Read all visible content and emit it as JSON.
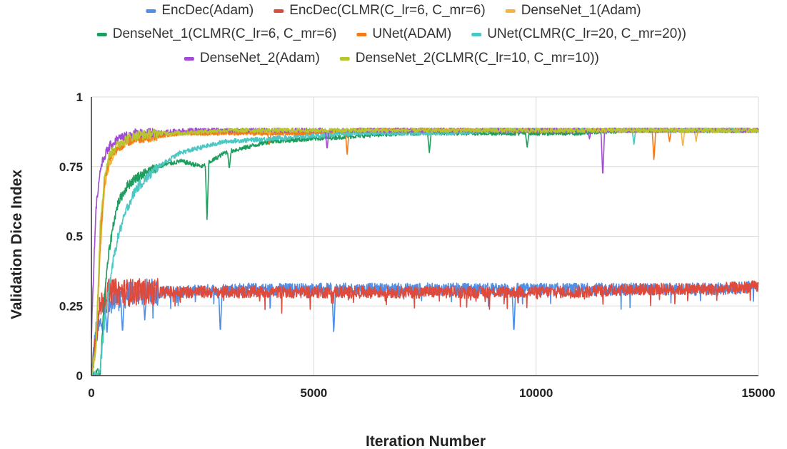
{
  "chart_data": {
    "type": "line",
    "title": "",
    "xlabel": "Iteration Number",
    "ylabel": "Validation Dice Index",
    "xlim": [
      0,
      15000
    ],
    "ylim": [
      0,
      1
    ],
    "xticks": [
      0,
      5000,
      10000,
      15000
    ],
    "yticks": [
      0,
      0.25,
      0.5,
      0.75,
      1
    ],
    "xtick_labels": [
      "0",
      "5000",
      "10000",
      "15000"
    ],
    "ytick_labels": [
      "0",
      "0.25",
      "0.5",
      "0.75",
      "1"
    ],
    "grid": true,
    "legend_position": "top",
    "series": [
      {
        "name": "EncDec(Adam)",
        "color": "#4f8fe8",
        "x": [
          0,
          100,
          200,
          300,
          400,
          600,
          800,
          1000,
          1500,
          2000,
          3000,
          4000,
          5000,
          6000,
          7000,
          8000,
          9000,
          10000,
          11000,
          12000,
          13000,
          14000,
          15000
        ],
        "y": [
          0.0,
          0.15,
          0.18,
          0.24,
          0.27,
          0.28,
          0.29,
          0.3,
          0.3,
          0.3,
          0.31,
          0.31,
          0.31,
          0.31,
          0.31,
          0.31,
          0.31,
          0.31,
          0.31,
          0.31,
          0.31,
          0.31,
          0.32
        ],
        "dips": [
          [
            350,
            0.15
          ],
          [
            700,
            0.15
          ],
          [
            1200,
            0.2
          ],
          [
            2900,
            0.15
          ],
          [
            5450,
            0.15
          ],
          [
            9500,
            0.15
          ]
        ]
      },
      {
        "name": "EncDec(CLMR(C_lr=6, C_mr=6)",
        "color": "#de4a3c",
        "x": [
          0,
          100,
          200,
          300,
          400,
          600,
          800,
          1000,
          1500,
          2000,
          3000,
          4000,
          5000,
          6000,
          7000,
          8000,
          9000,
          10000,
          11000,
          12000,
          13000,
          14000,
          15000
        ],
        "y": [
          0.0,
          0.15,
          0.25,
          0.28,
          0.3,
          0.3,
          0.3,
          0.3,
          0.3,
          0.3,
          0.3,
          0.3,
          0.3,
          0.3,
          0.3,
          0.3,
          0.3,
          0.3,
          0.3,
          0.31,
          0.31,
          0.31,
          0.32
        ],
        "dips": []
      },
      {
        "name": "DenseNet_1(Adam)",
        "color": "#f5b43c",
        "x": [
          0,
          100,
          200,
          300,
          400,
          600,
          800,
          1000,
          1500,
          2000,
          3000,
          4000,
          5000,
          6000,
          7000,
          8000,
          9000,
          10000,
          11000,
          12000,
          13000,
          14000,
          15000
        ],
        "y": [
          0.0,
          0.1,
          0.45,
          0.68,
          0.76,
          0.82,
          0.84,
          0.85,
          0.86,
          0.87,
          0.87,
          0.87,
          0.87,
          0.88,
          0.88,
          0.88,
          0.88,
          0.88,
          0.88,
          0.88,
          0.88,
          0.88,
          0.88
        ],
        "dips": [
          [
            13300,
            0.82
          ],
          [
            13600,
            0.84
          ]
        ]
      },
      {
        "name": "DenseNet_1(CLMR(C_lr=6, C_mr=6)",
        "color": "#1e9e5e",
        "x": [
          0,
          100,
          200,
          300,
          400,
          500,
          600,
          800,
          1000,
          1500,
          2000,
          2500,
          3000,
          3500,
          4000,
          5000,
          6000,
          7000,
          8000,
          9000,
          10000,
          11000,
          12000,
          13000,
          14000,
          15000
        ],
        "y": [
          0.0,
          0.0,
          0.02,
          0.3,
          0.45,
          0.55,
          0.62,
          0.68,
          0.71,
          0.75,
          0.77,
          0.75,
          0.8,
          0.82,
          0.84,
          0.85,
          0.86,
          0.87,
          0.87,
          0.87,
          0.87,
          0.87,
          0.88,
          0.88,
          0.88,
          0.88
        ],
        "dips": [
          [
            2600,
            0.56
          ],
          [
            3100,
            0.74
          ],
          [
            7600,
            0.8
          ],
          [
            9800,
            0.82
          ]
        ]
      },
      {
        "name": "UNet(ADAM)",
        "color": "#f27a1a",
        "x": [
          0,
          100,
          200,
          300,
          400,
          600,
          800,
          1000,
          1500,
          2000,
          3000,
          4000,
          5000,
          6000,
          7000,
          8000,
          9000,
          10000,
          11000,
          12000,
          13000,
          14000,
          15000
        ],
        "y": [
          0.0,
          0.1,
          0.5,
          0.7,
          0.78,
          0.82,
          0.84,
          0.85,
          0.86,
          0.87,
          0.87,
          0.87,
          0.87,
          0.88,
          0.88,
          0.88,
          0.88,
          0.88,
          0.88,
          0.88,
          0.88,
          0.88,
          0.88
        ],
        "dips": [
          [
            4000,
            0.83
          ],
          [
            5750,
            0.79
          ],
          [
            12650,
            0.77
          ],
          [
            13000,
            0.84
          ]
        ]
      },
      {
        "name": "UNet(CLMR(C_lr=20,  C_mr=20))",
        "color": "#4cc7c4",
        "x": [
          0,
          100,
          200,
          300,
          400,
          500,
          600,
          800,
          1000,
          1500,
          2000,
          2500,
          3000,
          4000,
          5000,
          6000,
          7000,
          8000,
          9000,
          10000,
          11000,
          12000,
          13000,
          14000,
          15000
        ],
        "y": [
          0.0,
          0.0,
          0.02,
          0.2,
          0.32,
          0.42,
          0.5,
          0.6,
          0.67,
          0.75,
          0.8,
          0.82,
          0.84,
          0.85,
          0.86,
          0.87,
          0.87,
          0.87,
          0.88,
          0.88,
          0.88,
          0.88,
          0.88,
          0.88,
          0.88
        ],
        "dips": [
          [
            12200,
            0.83
          ]
        ]
      },
      {
        "name": "DenseNet_2(Adam)",
        "color": "#a24bd6",
        "x": [
          0,
          100,
          200,
          300,
          400,
          600,
          800,
          1000,
          1500,
          2000,
          3000,
          4000,
          5000,
          6000,
          7000,
          8000,
          9000,
          10000,
          11000,
          12000,
          13000,
          14000,
          15000
        ],
        "y": [
          0.15,
          0.6,
          0.74,
          0.79,
          0.82,
          0.85,
          0.86,
          0.87,
          0.87,
          0.88,
          0.88,
          0.88,
          0.88,
          0.88,
          0.88,
          0.88,
          0.88,
          0.88,
          0.88,
          0.88,
          0.88,
          0.88,
          0.88
        ],
        "dips": [
          [
            5300,
            0.81
          ],
          [
            11500,
            0.71
          ],
          [
            11200,
            0.85
          ]
        ]
      },
      {
        "name": "DenseNet_2(CLMR(C_lr=10,  C_mr=10))",
        "color": "#b7c52f",
        "x": [
          0,
          100,
          200,
          300,
          400,
          600,
          800,
          1000,
          1500,
          2000,
          3000,
          4000,
          5000,
          6000,
          7000,
          8000,
          9000,
          10000,
          11000,
          12000,
          13000,
          14000,
          15000
        ],
        "y": [
          0.0,
          0.1,
          0.55,
          0.72,
          0.79,
          0.83,
          0.85,
          0.86,
          0.87,
          0.87,
          0.88,
          0.88,
          0.88,
          0.88,
          0.88,
          0.88,
          0.88,
          0.88,
          0.88,
          0.88,
          0.88,
          0.88,
          0.88
        ],
        "dips": []
      }
    ]
  }
}
